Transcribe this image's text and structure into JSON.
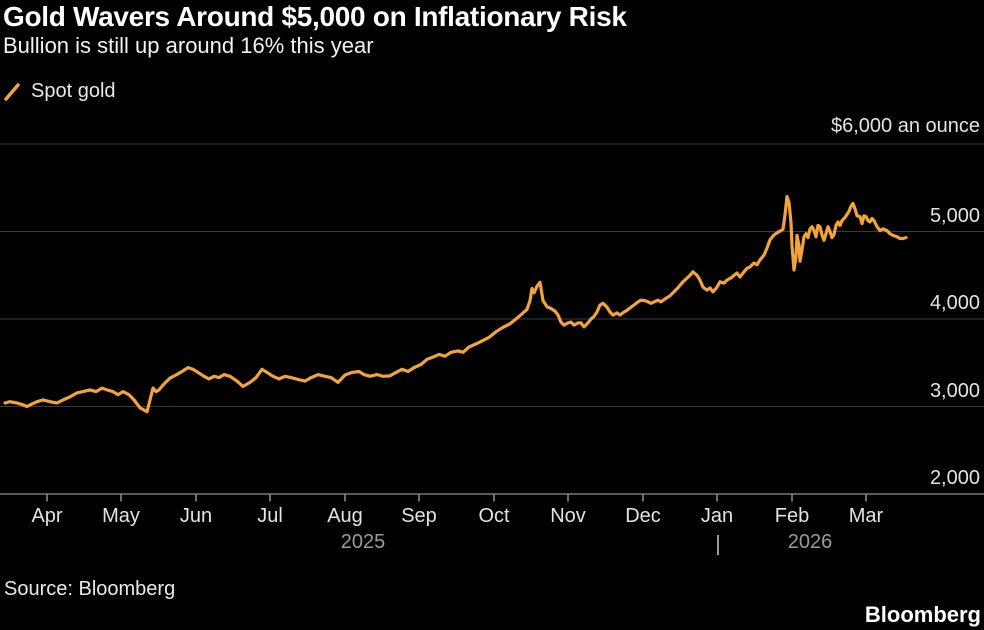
{
  "header": {
    "title": "Gold Wavers Around $5,000 on Inflationary Risk",
    "subtitle": "Bullion is still up around 16% this year"
  },
  "legend": {
    "series_label": "Spot gold"
  },
  "footer": {
    "source": "Source: Bloomberg",
    "brand": "Bloomberg"
  },
  "colors": {
    "background": "#000000",
    "line": "#F2A33C",
    "gridline": "#3B3B3B",
    "axis": "#909090",
    "label": "#E3E3E3",
    "year_label": "#9A9A9A"
  },
  "chart_data": {
    "type": "line",
    "title": "Gold Wavers Around $5,000 on Inflationary Risk",
    "subtitle": "Bullion is still up around 16% this year",
    "unit_top_label": "$6,000 an ounce",
    "ylim": [
      2000,
      6000
    ],
    "grid_values": [
      6000,
      5000,
      4000,
      3000
    ],
    "y_ticks": [
      {
        "value": 5000,
        "label": "5,000"
      },
      {
        "value": 4000,
        "label": "4,000"
      },
      {
        "value": 3000,
        "label": "3,000"
      },
      {
        "value": 2000,
        "label": "2,000"
      }
    ],
    "x_ticks": [
      "Apr",
      "May",
      "Jun",
      "Jul",
      "Aug",
      "Sep",
      "Oct",
      "Nov",
      "Dec",
      "Jan",
      "Feb",
      "Mar"
    ],
    "year_labels": [
      "2025",
      "2026"
    ],
    "legend_position": "top-left",
    "grid": "horizontal-only",
    "series": [
      {
        "name": "Spot gold",
        "x_unit": "px-along-time-axis",
        "points": [
          [
            5,
            3040
          ],
          [
            10,
            3055
          ],
          [
            17,
            3040
          ],
          [
            23,
            3020
          ],
          [
            27,
            3000
          ],
          [
            32,
            3030
          ],
          [
            37,
            3055
          ],
          [
            43,
            3075
          ],
          [
            50,
            3055
          ],
          [
            57,
            3040
          ],
          [
            63,
            3075
          ],
          [
            70,
            3110
          ],
          [
            77,
            3155
          ],
          [
            83,
            3170
          ],
          [
            90,
            3190
          ],
          [
            96,
            3170
          ],
          [
            102,
            3210
          ],
          [
            107,
            3190
          ],
          [
            113,
            3170
          ],
          [
            118,
            3135
          ],
          [
            123,
            3170
          ],
          [
            129,
            3135
          ],
          [
            134,
            3075
          ],
          [
            140,
            2985
          ],
          [
            144,
            2960
          ],
          [
            147,
            2940
          ],
          [
            150,
            3075
          ],
          [
            153,
            3210
          ],
          [
            156,
            3170
          ],
          [
            159,
            3190
          ],
          [
            163,
            3245
          ],
          [
            166,
            3280
          ],
          [
            170,
            3325
          ],
          [
            176,
            3360
          ],
          [
            182,
            3400
          ],
          [
            188,
            3445
          ],
          [
            193,
            3425
          ],
          [
            198,
            3390
          ],
          [
            204,
            3345
          ],
          [
            209,
            3315
          ],
          [
            214,
            3345
          ],
          [
            219,
            3330
          ],
          [
            224,
            3365
          ],
          [
            230,
            3345
          ],
          [
            237,
            3290
          ],
          [
            243,
            3230
          ],
          [
            250,
            3275
          ],
          [
            256,
            3330
          ],
          [
            262,
            3425
          ],
          [
            267,
            3390
          ],
          [
            273,
            3345
          ],
          [
            279,
            3315
          ],
          [
            285,
            3345
          ],
          [
            291,
            3330
          ],
          [
            298,
            3310
          ],
          [
            305,
            3290
          ],
          [
            311,
            3330
          ],
          [
            318,
            3365
          ],
          [
            325,
            3345
          ],
          [
            331,
            3330
          ],
          [
            338,
            3275
          ],
          [
            345,
            3360
          ],
          [
            352,
            3390
          ],
          [
            359,
            3400
          ],
          [
            364,
            3365
          ],
          [
            370,
            3345
          ],
          [
            377,
            3365
          ],
          [
            383,
            3345
          ],
          [
            390,
            3350
          ],
          [
            396,
            3390
          ],
          [
            402,
            3425
          ],
          [
            408,
            3400
          ],
          [
            414,
            3445
          ],
          [
            421,
            3480
          ],
          [
            427,
            3540
          ],
          [
            433,
            3565
          ],
          [
            439,
            3595
          ],
          [
            445,
            3575
          ],
          [
            451,
            3620
          ],
          [
            458,
            3635
          ],
          [
            463,
            3620
          ],
          [
            469,
            3680
          ],
          [
            476,
            3715
          ],
          [
            482,
            3750
          ],
          [
            489,
            3790
          ],
          [
            496,
            3855
          ],
          [
            503,
            3905
          ],
          [
            510,
            3945
          ],
          [
            516,
            4000
          ],
          [
            522,
            4060
          ],
          [
            527,
            4110
          ],
          [
            530,
            4210
          ],
          [
            532,
            4350
          ],
          [
            534,
            4300
          ],
          [
            537,
            4375
          ],
          [
            540,
            4420
          ],
          [
            543,
            4210
          ],
          [
            547,
            4140
          ],
          [
            551,
            4120
          ],
          [
            555,
            4090
          ],
          [
            558,
            4045
          ],
          [
            561,
            3965
          ],
          [
            564,
            3930
          ],
          [
            568,
            3955
          ],
          [
            571,
            3965
          ],
          [
            574,
            3930
          ],
          [
            578,
            3955
          ],
          [
            581,
            3955
          ],
          [
            584,
            3910
          ],
          [
            588,
            3955
          ],
          [
            591,
            4000
          ],
          [
            594,
            4030
          ],
          [
            597,
            4080
          ],
          [
            600,
            4160
          ],
          [
            603,
            4180
          ],
          [
            607,
            4135
          ],
          [
            610,
            4080
          ],
          [
            613,
            4045
          ],
          [
            617,
            4070
          ],
          [
            620,
            4045
          ],
          [
            624,
            4080
          ],
          [
            627,
            4100
          ],
          [
            631,
            4135
          ],
          [
            634,
            4160
          ],
          [
            638,
            4195
          ],
          [
            641,
            4215
          ],
          [
            645,
            4210
          ],
          [
            648,
            4195
          ],
          [
            651,
            4180
          ],
          [
            654,
            4195
          ],
          [
            658,
            4215
          ],
          [
            661,
            4195
          ],
          [
            665,
            4230
          ],
          [
            670,
            4265
          ],
          [
            677,
            4345
          ],
          [
            683,
            4425
          ],
          [
            690,
            4500
          ],
          [
            693,
            4540
          ],
          [
            697,
            4500
          ],
          [
            700,
            4445
          ],
          [
            703,
            4365
          ],
          [
            707,
            4330
          ],
          [
            710,
            4355
          ],
          [
            713,
            4310
          ],
          [
            717,
            4365
          ],
          [
            720,
            4425
          ],
          [
            724,
            4410
          ],
          [
            727,
            4445
          ],
          [
            731,
            4470
          ],
          [
            734,
            4500
          ],
          [
            737,
            4525
          ],
          [
            740,
            4480
          ],
          [
            744,
            4540
          ],
          [
            747,
            4580
          ],
          [
            750,
            4595
          ],
          [
            754,
            4640
          ],
          [
            757,
            4620
          ],
          [
            760,
            4675
          ],
          [
            764,
            4730
          ],
          [
            767,
            4810
          ],
          [
            770,
            4905
          ],
          [
            774,
            4960
          ],
          [
            777,
            4985
          ],
          [
            780,
            5005
          ],
          [
            783,
            5025
          ],
          [
            785,
            5190
          ],
          [
            787,
            5400
          ],
          [
            789,
            5330
          ],
          [
            791,
            5100
          ],
          [
            792,
            4840
          ],
          [
            794,
            4560
          ],
          [
            796,
            4710
          ],
          [
            797,
            4955
          ],
          [
            799,
            4840
          ],
          [
            800,
            4660
          ],
          [
            802,
            4790
          ],
          [
            804,
            4940
          ],
          [
            806,
            4975
          ],
          [
            808,
            4930
          ],
          [
            810,
            5030
          ],
          [
            812,
            5055
          ],
          [
            814,
            5010
          ],
          [
            816,
            4940
          ],
          [
            818,
            5070
          ],
          [
            820,
            5055
          ],
          [
            822,
            4960
          ],
          [
            824,
            4900
          ],
          [
            826,
            4975
          ],
          [
            828,
            5055
          ],
          [
            830,
            5000
          ],
          [
            832,
            4930
          ],
          [
            834,
            4965
          ],
          [
            836,
            5070
          ],
          [
            838,
            5110
          ],
          [
            840,
            5070
          ],
          [
            842,
            5125
          ],
          [
            845,
            5160
          ],
          [
            847,
            5195
          ],
          [
            849,
            5230
          ],
          [
            851,
            5290
          ],
          [
            853,
            5320
          ],
          [
            855,
            5260
          ],
          [
            857,
            5180
          ],
          [
            860,
            5170
          ],
          [
            862,
            5090
          ],
          [
            864,
            5180
          ],
          [
            866,
            5170
          ],
          [
            868,
            5125
          ],
          [
            870,
            5110
          ],
          [
            872,
            5150
          ],
          [
            874,
            5125
          ],
          [
            877,
            5055
          ],
          [
            880,
            5010
          ],
          [
            883,
            5030
          ],
          [
            887,
            5010
          ],
          [
            890,
            4975
          ],
          [
            893,
            4955
          ],
          [
            897,
            4940
          ],
          [
            900,
            4920
          ],
          [
            903,
            4920
          ],
          [
            906,
            4930
          ]
        ]
      }
    ]
  }
}
